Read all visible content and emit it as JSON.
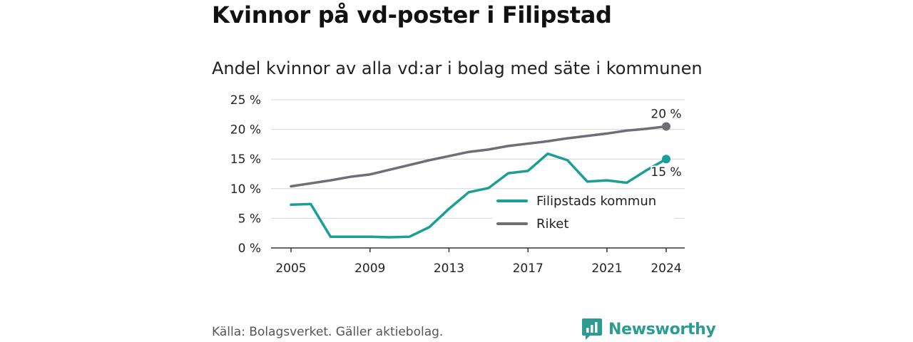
{
  "header": {
    "title": "Kvinnor på vd-poster i Filipstad",
    "subtitle": "Andel kvinnor av alla vd:ar i bolag med säte i kommunen"
  },
  "footer": {
    "source": "Källa: Bolagsverket. Gäller aktiebolag.",
    "brand": "Newsworthy"
  },
  "colors": {
    "filipstad": "#1a9e96",
    "riket": "#6f6e76",
    "grid": "#d4d4d4",
    "axis": "#333333",
    "brand": "#2c9c93"
  },
  "chart_data": {
    "type": "line",
    "x": [
      2005,
      2006,
      2007,
      2008,
      2009,
      2010,
      2011,
      2012,
      2013,
      2014,
      2015,
      2016,
      2017,
      2018,
      2019,
      2020,
      2021,
      2022,
      2023,
      2024
    ],
    "series": [
      {
        "name": "Filipstads kommun",
        "values": [
          7.3,
          7.4,
          1.9,
          1.9,
          1.9,
          1.8,
          1.9,
          3.5,
          6.6,
          9.4,
          10.1,
          12.6,
          13.0,
          15.9,
          14.8,
          11.2,
          11.4,
          11.0,
          13.1,
          15.0
        ],
        "end_label": "15 %"
      },
      {
        "name": "Riket",
        "values": [
          10.4,
          10.9,
          11.4,
          12.0,
          12.4,
          13.2,
          14.0,
          14.8,
          15.5,
          16.2,
          16.6,
          17.2,
          17.6,
          18.0,
          18.5,
          18.9,
          19.3,
          19.8,
          20.1,
          20.5
        ],
        "end_label": "20 %"
      }
    ],
    "x_ticks": [
      2005,
      2009,
      2013,
      2017,
      2021,
      2024
    ],
    "y_ticks": [
      0,
      5,
      10,
      15,
      20,
      25
    ],
    "y_tick_labels": [
      "0 %",
      "5 %",
      "10 %",
      "15 %",
      "20 %",
      "25 %"
    ],
    "ylim": [
      0,
      25
    ],
    "xlim": [
      2005,
      2024
    ],
    "grid": "horizontal",
    "legend": "bottom-right"
  }
}
